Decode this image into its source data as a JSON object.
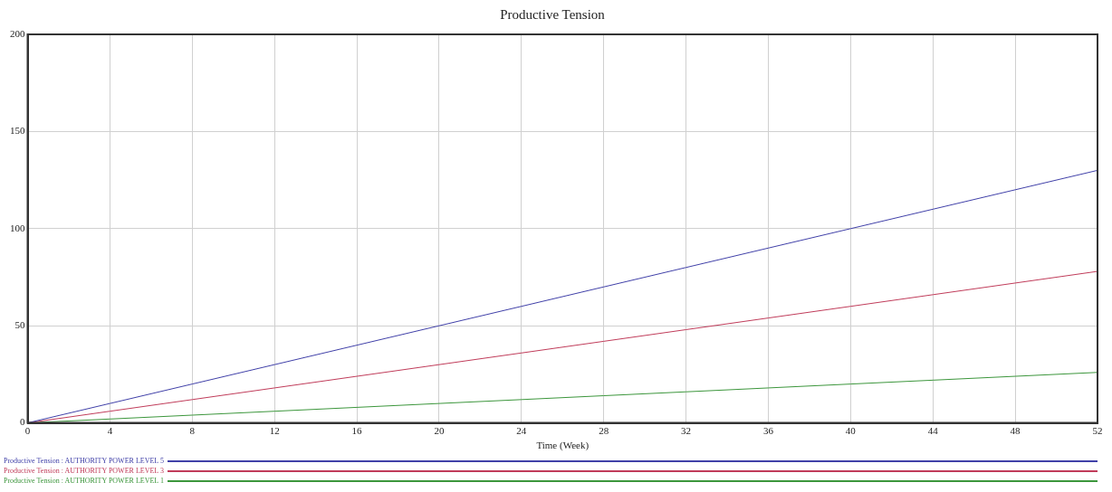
{
  "chart_data": {
    "type": "line",
    "title": "Productive Tension",
    "xlabel": "Time (Week)",
    "x": [
      0,
      4,
      8,
      12,
      16,
      20,
      24,
      28,
      32,
      36,
      40,
      44,
      48,
      52
    ],
    "series": [
      {
        "name": "Productive Tension : AUTHORITY POWER LEVEL 5",
        "color": "#4040a8",
        "values": [
          0,
          10,
          20,
          30,
          40,
          50,
          60,
          70,
          80,
          90,
          100,
          110,
          120,
          130
        ]
      },
      {
        "name": "Productive Tension : AUTHORITY POWER LEVEL 3",
        "color": "#c03c5a",
        "values": [
          0,
          6,
          12,
          18,
          24,
          30,
          36,
          42,
          48,
          54,
          60,
          66,
          72,
          78
        ]
      },
      {
        "name": "Productive Tension : AUTHORITY POWER LEVEL 1",
        "color": "#3c963c",
        "values": [
          0,
          2,
          4,
          6,
          8,
          10,
          12,
          14,
          16,
          18,
          20,
          22,
          24,
          26
        ]
      }
    ],
    "xlim": [
      0,
      52
    ],
    "xticks": [
      0,
      4,
      8,
      12,
      16,
      20,
      24,
      28,
      32,
      36,
      40,
      44,
      48,
      52
    ],
    "ylim": [
      0,
      200
    ],
    "yticks": [
      0,
      50,
      100,
      150,
      200
    ],
    "grid": true,
    "legend": "bottom",
    "marker": "none",
    "line_style": "solid"
  }
}
